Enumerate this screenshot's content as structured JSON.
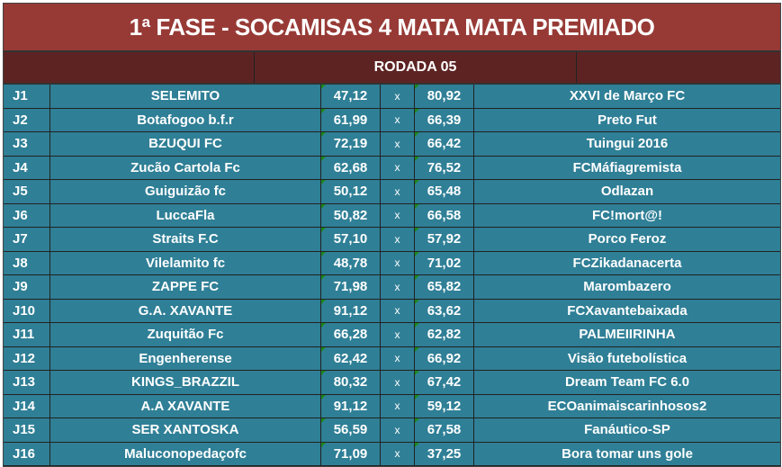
{
  "title": "1ª FASE - SOCAMISAS 4 MATA MATA PREMIADO",
  "round": "RODADA 05",
  "vs": "x",
  "matches": [
    {
      "id": "J1",
      "home": "SELEMITO",
      "hs": "47,12",
      "as": "80,92",
      "away": "XXVI de Março FC"
    },
    {
      "id": "J2",
      "home": "Botafogoo b.f.r",
      "hs": "61,99",
      "as": "66,39",
      "away": "Preto Fut"
    },
    {
      "id": "J3",
      "home": "BZUQUI FC",
      "hs": "72,19",
      "as": "66,42",
      "away": "Tuingui 2016"
    },
    {
      "id": "J4",
      "home": "Zucão Cartola Fc",
      "hs": "62,68",
      "as": "76,52",
      "away": "FCMáfiagremista"
    },
    {
      "id": "J5",
      "home": "Guiguizão fc",
      "hs": "50,12",
      "as": "65,48",
      "away": "Odlazan"
    },
    {
      "id": "J6",
      "home": "LuccaFla",
      "hs": "50,82",
      "as": "66,58",
      "away": "FC!mort@!"
    },
    {
      "id": "J7",
      "home": "Straits F.C",
      "hs": "57,10",
      "as": "57,92",
      "away": "Porco Feroz"
    },
    {
      "id": "J8",
      "home": "Vilelamito fc",
      "hs": "48,78",
      "as": "71,02",
      "away": "FCZikadanacerta"
    },
    {
      "id": "J9",
      "home": "ZAPPE FC",
      "hs": "71,98",
      "as": "65,82",
      "away": "Marombazero"
    },
    {
      "id": "J10",
      "home": "G.A. XAVANTE",
      "hs": "91,12",
      "as": "63,62",
      "away": "FCXavantebaixada"
    },
    {
      "id": "J11",
      "home": "Zuquitão Fc",
      "hs": "66,28",
      "as": "62,82",
      "away": "PALMEIIRINHA"
    },
    {
      "id": "J12",
      "home": "Engenherense",
      "hs": "62,42",
      "as": "66,92",
      "away": "Visão futebolística"
    },
    {
      "id": "J13",
      "home": "KINGS_BRAZZIL",
      "hs": "80,32",
      "as": "67,42",
      "away": "Dream Team FC 6.0"
    },
    {
      "id": "J14",
      "home": "A.A XAVANTE",
      "hs": "91,12",
      "as": "59,12",
      "away": "ECOanimaiscarinhosos2"
    },
    {
      "id": "J15",
      "home": "SER XANTOSKA",
      "hs": "56,59",
      "as": "67,58",
      "away": "Fanáutico-SP"
    },
    {
      "id": "J16",
      "home": "Maluconopedaçofc",
      "hs": "71,09",
      "as": "37,25",
      "away": "Bora tomar uns gole"
    }
  ]
}
